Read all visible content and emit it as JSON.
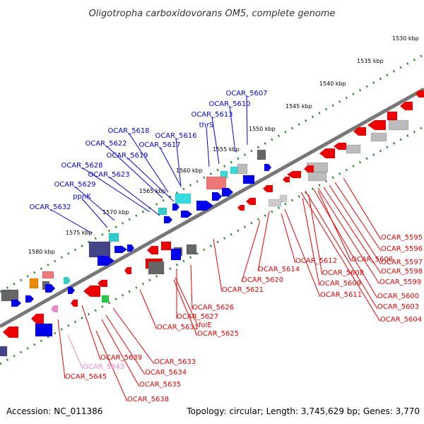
{
  "title": "Oligotropha carboxidovorans OM5, complete genome",
  "footer": {
    "accession": "Accession: NC_011386",
    "summary": "Topology: circular; Length: 3,745,629 bp; Genes: 3,770"
  },
  "scale_labels": [
    "1530 kbp",
    "1535 kbp",
    "1540 kbp",
    "1545 kbp",
    "1550 kbp",
    "1555 kbp",
    "1560 kbp",
    "1565 kbp",
    "1570 kbp",
    "1575 kbp",
    "1580 kbp"
  ],
  "colors": {
    "forward_strand": "#0000ee",
    "reverse_strand": "#ee0000",
    "pink": "#ee88cc",
    "backbone": "#777777",
    "scale_dots": "#228822"
  },
  "blue_labels": [
    "OCAR_5607",
    "OCAR_5610",
    "OCAR_5613",
    "thrS",
    "OCAR_5618",
    "OCAR_5616",
    "OCAR_5622",
    "OCAR_5617",
    "OCAR_5619",
    "OCAR_5628",
    "OCAR_5623",
    "OCAR_5629",
    "ppnK",
    "OCAR_5632"
  ],
  "red_labels": [
    "OCAR_5595",
    "OCAR_5596",
    "OCAR_5597",
    "OCAR_5598",
    "OCAR_5599",
    "OCAR_5600",
    "OCAR_5603",
    "OCAR_5604",
    "OCAR_5606",
    "OCAR_5608",
    "OCAR_5609",
    "OCAR_5611",
    "OCAR_5612",
    "OCAR_5614",
    "OCAR_5620",
    "OCAR_5621",
    "OCAR_5626",
    "OCAR_5627",
    "folE",
    "OCAR_5625",
    "OCAR_5631",
    "OCAR_5633",
    "OCAR_5634",
    "OCAR_5635",
    "OCAR_5638",
    "OCAR_5639",
    "OCAR_5645"
  ],
  "pink_labels": [
    "OCAR_5643"
  ]
}
